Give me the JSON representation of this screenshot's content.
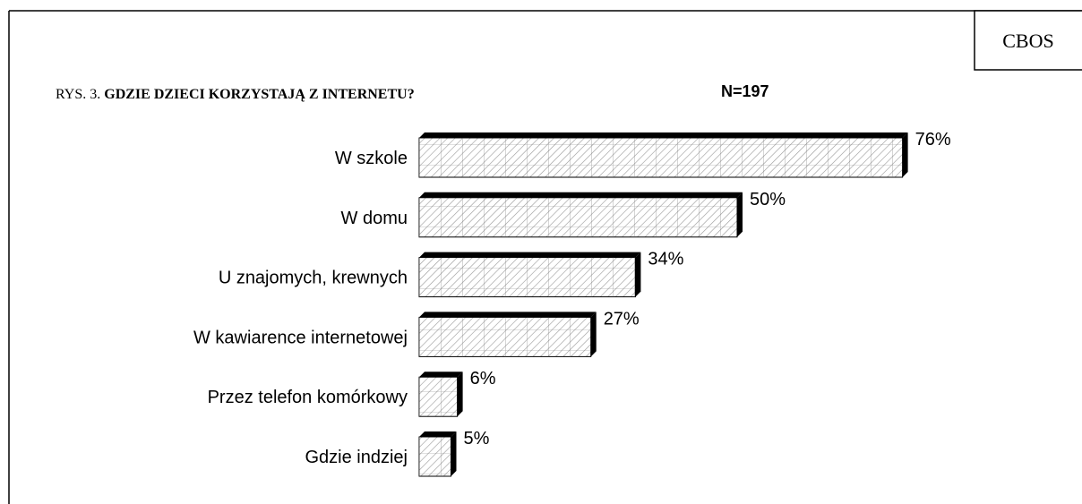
{
  "source": "CBOS",
  "chart_data": {
    "type": "hbar",
    "figure_label": "RYS. 3.",
    "title": "GDZIE DZIECI KORZYSTAJĄ Z INTERNETU?",
    "subtitle": "N=197",
    "categories": [
      "W szkole",
      "W domu",
      "U znajomych, krewnych",
      "W kawiarence internetowej",
      "Przez telefon komórkowy",
      "Gdzie indziej"
    ],
    "values": [
      76,
      50,
      34,
      27,
      6,
      5
    ],
    "value_labels": [
      "76%",
      "50%",
      "34%",
      "27%",
      "6%",
      "5%"
    ],
    "color": "#000000"
  }
}
